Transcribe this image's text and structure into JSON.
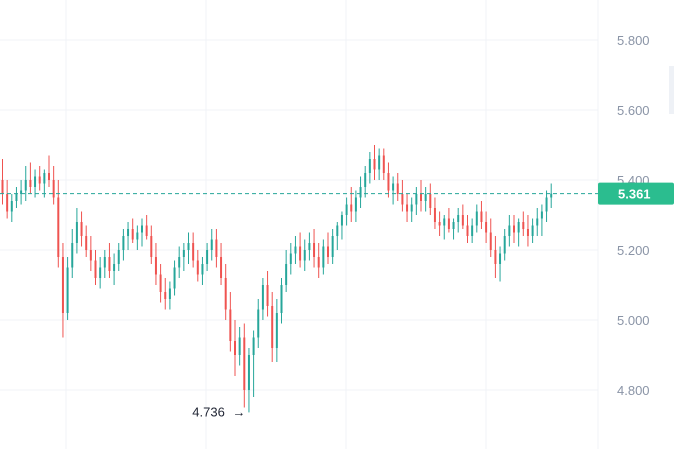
{
  "chart_data": {
    "type": "candlestick",
    "y_ticks": [
      "5.800",
      "5.600",
      "5.400",
      "5.200",
      "5.000",
      "4.800"
    ],
    "y_tick_values": [
      5.8,
      5.6,
      5.4,
      5.2,
      5.0,
      4.8
    ],
    "ylim": [
      4.66,
      5.92
    ],
    "grid": true,
    "last_price": 5.361,
    "last_price_label": "5.361",
    "low_value": 4.736,
    "low_label": "4.736",
    "low_arrow": "→",
    "colors": {
      "up": "#26a69a",
      "down": "#ef5350",
      "price_tag": "#2bbd8f",
      "grid": "#f0f3f7",
      "tick_text": "#8a94a6"
    },
    "candles": [
      [
        5.4,
        5.46,
        5.33,
        5.36
      ],
      [
        5.36,
        5.4,
        5.29,
        5.31
      ],
      [
        5.31,
        5.36,
        5.28,
        5.34
      ],
      [
        5.34,
        5.38,
        5.32,
        5.36
      ],
      [
        5.36,
        5.4,
        5.33,
        5.37
      ],
      [
        5.37,
        5.44,
        5.34,
        5.4
      ],
      [
        5.4,
        5.45,
        5.36,
        5.38
      ],
      [
        5.38,
        5.43,
        5.35,
        5.41
      ],
      [
        5.41,
        5.44,
        5.37,
        5.39
      ],
      [
        5.39,
        5.43,
        5.35,
        5.42
      ],
      [
        5.42,
        5.47,
        5.38,
        5.4
      ],
      [
        5.4,
        5.44,
        5.33,
        5.35
      ],
      [
        5.35,
        5.4,
        5.15,
        5.18
      ],
      [
        5.18,
        5.22,
        4.95,
        5.02
      ],
      [
        5.02,
        5.18,
        5.0,
        5.15
      ],
      [
        5.15,
        5.26,
        5.12,
        5.22
      ],
      [
        5.22,
        5.32,
        5.19,
        5.28
      ],
      [
        5.28,
        5.31,
        5.21,
        5.24
      ],
      [
        5.24,
        5.27,
        5.18,
        5.2
      ],
      [
        5.2,
        5.24,
        5.14,
        5.17
      ],
      [
        5.17,
        5.2,
        5.1,
        5.12
      ],
      [
        5.12,
        5.18,
        5.09,
        5.15
      ],
      [
        5.15,
        5.2,
        5.12,
        5.18
      ],
      [
        5.18,
        5.22,
        5.12,
        5.14
      ],
      [
        5.14,
        5.19,
        5.1,
        5.16
      ],
      [
        5.16,
        5.22,
        5.14,
        5.2
      ],
      [
        5.2,
        5.26,
        5.17,
        5.24
      ],
      [
        5.24,
        5.28,
        5.2,
        5.26
      ],
      [
        5.26,
        5.29,
        5.22,
        5.23
      ],
      [
        5.23,
        5.27,
        5.2,
        5.25
      ],
      [
        5.25,
        5.29,
        5.21,
        5.27
      ],
      [
        5.27,
        5.3,
        5.23,
        5.24
      ],
      [
        5.24,
        5.27,
        5.16,
        5.18
      ],
      [
        5.18,
        5.22,
        5.1,
        5.13
      ],
      [
        5.13,
        5.16,
        5.05,
        5.08
      ],
      [
        5.08,
        5.12,
        5.03,
        5.06
      ],
      [
        5.06,
        5.11,
        5.03,
        5.09
      ],
      [
        5.09,
        5.17,
        5.07,
        5.15
      ],
      [
        5.15,
        5.21,
        5.12,
        5.18
      ],
      [
        5.18,
        5.22,
        5.14,
        5.2
      ],
      [
        5.2,
        5.25,
        5.16,
        5.22
      ],
      [
        5.22,
        5.25,
        5.15,
        5.17
      ],
      [
        5.17,
        5.2,
        5.11,
        5.13
      ],
      [
        5.13,
        5.18,
        5.1,
        5.16
      ],
      [
        5.16,
        5.22,
        5.14,
        5.2
      ],
      [
        5.2,
        5.26,
        5.17,
        5.23
      ],
      [
        5.23,
        5.26,
        5.15,
        5.18
      ],
      [
        5.18,
        5.22,
        5.1,
        5.12
      ],
      [
        5.12,
        5.16,
        5.0,
        5.03
      ],
      [
        5.03,
        5.08,
        4.91,
        4.94
      ],
      [
        4.94,
        5.0,
        4.84,
        4.9
      ],
      [
        4.9,
        4.98,
        4.87,
        4.95
      ],
      [
        4.95,
        4.99,
        4.75,
        4.8
      ],
      [
        4.8,
        4.92,
        4.736,
        4.9
      ],
      [
        4.9,
        4.97,
        4.78,
        4.95
      ],
      [
        4.95,
        5.06,
        4.92,
        5.03
      ],
      [
        5.03,
        5.12,
        5.0,
        5.1
      ],
      [
        5.1,
        5.14,
        5.01,
        5.04
      ],
      [
        5.04,
        5.08,
        4.88,
        4.92
      ],
      [
        4.92,
        5.06,
        4.88,
        5.02
      ],
      [
        5.02,
        5.12,
        4.99,
        5.1
      ],
      [
        5.1,
        5.2,
        5.08,
        5.16
      ],
      [
        5.16,
        5.22,
        5.13,
        5.19
      ],
      [
        5.19,
        5.24,
        5.16,
        5.21
      ],
      [
        5.21,
        5.25,
        5.15,
        5.17
      ],
      [
        5.17,
        5.23,
        5.14,
        5.2
      ],
      [
        5.2,
        5.25,
        5.17,
        5.22
      ],
      [
        5.22,
        5.26,
        5.15,
        5.18
      ],
      [
        5.18,
        5.22,
        5.12,
        5.15
      ],
      [
        5.15,
        5.23,
        5.13,
        5.21
      ],
      [
        5.21,
        5.25,
        5.16,
        5.18
      ],
      [
        5.18,
        5.26,
        5.16,
        5.24
      ],
      [
        5.24,
        5.28,
        5.2,
        5.27
      ],
      [
        5.27,
        5.31,
        5.23,
        5.3
      ],
      [
        5.3,
        5.35,
        5.27,
        5.33
      ],
      [
        5.33,
        5.38,
        5.28,
        5.31
      ],
      [
        5.31,
        5.37,
        5.28,
        5.35
      ],
      [
        5.35,
        5.41,
        5.32,
        5.38
      ],
      [
        5.38,
        5.44,
        5.35,
        5.42
      ],
      [
        5.42,
        5.48,
        5.39,
        5.46
      ],
      [
        5.46,
        5.5,
        5.4,
        5.43
      ],
      [
        5.43,
        5.49,
        5.4,
        5.47
      ],
      [
        5.47,
        5.49,
        5.4,
        5.42
      ],
      [
        5.42,
        5.45,
        5.35,
        5.37
      ],
      [
        5.37,
        5.41,
        5.33,
        5.39
      ],
      [
        5.39,
        5.42,
        5.34,
        5.36
      ],
      [
        5.36,
        5.4,
        5.31,
        5.33
      ],
      [
        5.33,
        5.36,
        5.28,
        5.31
      ],
      [
        5.31,
        5.35,
        5.28,
        5.33
      ],
      [
        5.33,
        5.38,
        5.3,
        5.36
      ],
      [
        5.36,
        5.4,
        5.31,
        5.34
      ],
      [
        5.34,
        5.38,
        5.31,
        5.36
      ],
      [
        5.36,
        5.39,
        5.3,
        5.32
      ],
      [
        5.32,
        5.35,
        5.26,
        5.28
      ],
      [
        5.28,
        5.31,
        5.24,
        5.27
      ],
      [
        5.27,
        5.3,
        5.23,
        5.29
      ],
      [
        5.29,
        5.32,
        5.25,
        5.26
      ],
      [
        5.26,
        5.29,
        5.23,
        5.28
      ],
      [
        5.28,
        5.32,
        5.25,
        5.3
      ],
      [
        5.3,
        5.33,
        5.26,
        5.27
      ],
      [
        5.27,
        5.3,
        5.22,
        5.24
      ],
      [
        5.24,
        5.29,
        5.22,
        5.27
      ],
      [
        5.27,
        5.33,
        5.25,
        5.31
      ],
      [
        5.31,
        5.34,
        5.26,
        5.28
      ],
      [
        5.28,
        5.31,
        5.22,
        5.25
      ],
      [
        5.25,
        5.29,
        5.18,
        5.2
      ],
      [
        5.2,
        5.24,
        5.12,
        5.16
      ],
      [
        5.16,
        5.21,
        5.11,
        5.19
      ],
      [
        5.19,
        5.26,
        5.17,
        5.24
      ],
      [
        5.24,
        5.3,
        5.21,
        5.27
      ],
      [
        5.27,
        5.3,
        5.22,
        5.25
      ],
      [
        5.25,
        5.29,
        5.21,
        5.28
      ],
      [
        5.28,
        5.31,
        5.24,
        5.26
      ],
      [
        5.26,
        5.3,
        5.21,
        5.24
      ],
      [
        5.24,
        5.29,
        5.22,
        5.27
      ],
      [
        5.27,
        5.32,
        5.24,
        5.29
      ],
      [
        5.29,
        5.33,
        5.24,
        5.31
      ],
      [
        5.31,
        5.37,
        5.28,
        5.35
      ],
      [
        5.35,
        5.39,
        5.32,
        5.361
      ]
    ]
  }
}
